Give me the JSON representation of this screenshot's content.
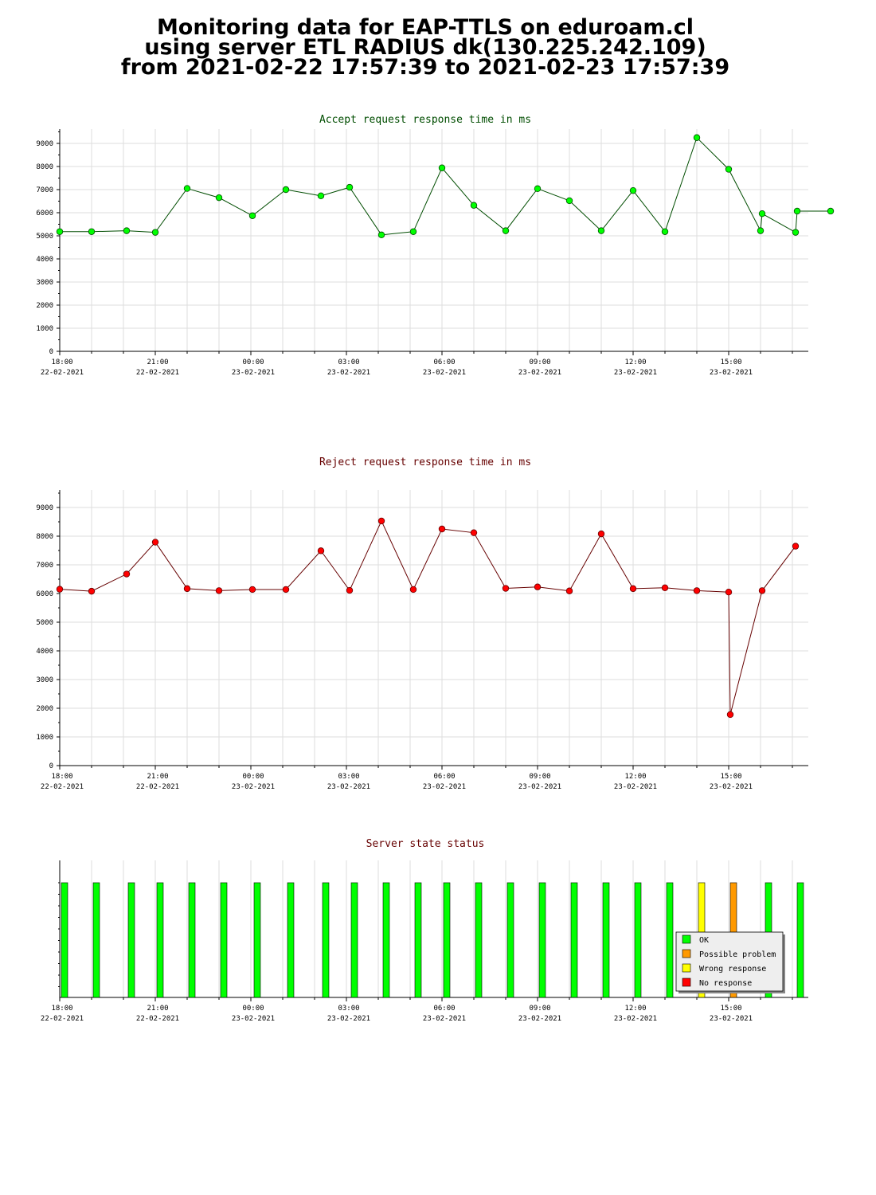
{
  "page_title": {
    "line1": "Monitoring data for EAP-TTLS on eduroam.cl",
    "line2": "using server ETL RADIUS dk(130.225.242.109)",
    "line3": "from 2021-02-22 17:57:39 to 2021-02-23 17:57:39"
  },
  "x_ticks": [
    {
      "time": "18:00",
      "date": "22-02-2021"
    },
    {
      "time": "21:00",
      "date": "22-02-2021"
    },
    {
      "time": "00:00",
      "date": "23-02-2021"
    },
    {
      "time": "03:00",
      "date": "23-02-2021"
    },
    {
      "time": "06:00",
      "date": "23-02-2021"
    },
    {
      "time": "09:00",
      "date": "23-02-2021"
    },
    {
      "time": "12:00",
      "date": "23-02-2021"
    },
    {
      "time": "15:00",
      "date": "23-02-2021"
    }
  ],
  "chart_data": [
    {
      "type": "line",
      "title": "Accept request response time in ms",
      "title_color": "#004d00",
      "line_color": "#004d00",
      "marker_color": "#00ff00",
      "x_unit": "hours since 2021-02-22 18:00",
      "xlim": [
        0,
        23.5
      ],
      "ylim": [
        0,
        9600
      ],
      "yticks": [
        0,
        1000,
        2000,
        3000,
        4000,
        5000,
        6000,
        7000,
        8000,
        9000
      ],
      "x": [
        0,
        1,
        2.1,
        3,
        4,
        5,
        6.05,
        7.1,
        8.2,
        9.1,
        10.1,
        11.1,
        12,
        13,
        14,
        15,
        16,
        17,
        18,
        19,
        20,
        21,
        22,
        22.05,
        23.1,
        23.15,
        24.2
      ],
      "values": [
        5180,
        5180,
        5220,
        5150,
        7050,
        6650,
        5870,
        7000,
        6730,
        7100,
        5040,
        5180,
        7940,
        6320,
        5220,
        7040,
        6520,
        5220,
        6960,
        5180,
        9250,
        7880,
        5220,
        5960,
        5150,
        6070,
        6070
      ]
    },
    {
      "type": "line",
      "title": "Reject request response time in ms",
      "title_color": "#660000",
      "line_color": "#660000",
      "marker_color": "#ff0000",
      "x_unit": "hours since 2021-02-22 18:00",
      "xlim": [
        0,
        23.5
      ],
      "ylim": [
        0,
        9600
      ],
      "yticks": [
        0,
        1000,
        2000,
        3000,
        4000,
        5000,
        6000,
        7000,
        8000,
        9000
      ],
      "x": [
        0,
        1,
        2.1,
        3,
        4,
        5,
        6.05,
        7.1,
        8.2,
        9.1,
        10.1,
        11.1,
        12,
        13,
        14,
        15,
        16,
        17,
        18,
        19,
        20,
        21,
        21.05,
        22.05,
        23.1
      ],
      "values": [
        6150,
        6080,
        6680,
        7790,
        6170,
        6100,
        6140,
        6140,
        7490,
        6110,
        8530,
        6140,
        8250,
        8120,
        6180,
        6230,
        6090,
        8080,
        6170,
        6200,
        6100,
        6050,
        1780,
        6100,
        7650
      ]
    },
    {
      "type": "bar",
      "title": "Server state status",
      "title_color": "#660000",
      "x_unit": "hours since 2021-02-22 18:00",
      "xlim": [
        0,
        23.5
      ],
      "x": [
        0.1,
        1.1,
        2.2,
        3.1,
        4.1,
        5.1,
        6.15,
        7.2,
        8.3,
        9.2,
        10.2,
        11.2,
        12.1,
        13.1,
        14.1,
        15.1,
        16.1,
        17.1,
        18.1,
        19.1,
        20.1,
        21.1,
        22.2,
        23.2
      ],
      "status": [
        "OK",
        "OK",
        "OK",
        "OK",
        "OK",
        "OK",
        "OK",
        "OK",
        "OK",
        "OK",
        "OK",
        "OK",
        "OK",
        "OK",
        "OK",
        "OK",
        "OK",
        "OK",
        "OK",
        "OK",
        "Wrong response",
        "Possible problem",
        "OK",
        "OK"
      ],
      "legend": [
        {
          "label": "OK",
          "color": "#00ff00"
        },
        {
          "label": "Possible problem",
          "color": "#ff9900"
        },
        {
          "label": "Wrong response",
          "color": "#ffff00"
        },
        {
          "label": "No response",
          "color": "#ff0000"
        }
      ],
      "legend_position": "bottom-right"
    }
  ]
}
